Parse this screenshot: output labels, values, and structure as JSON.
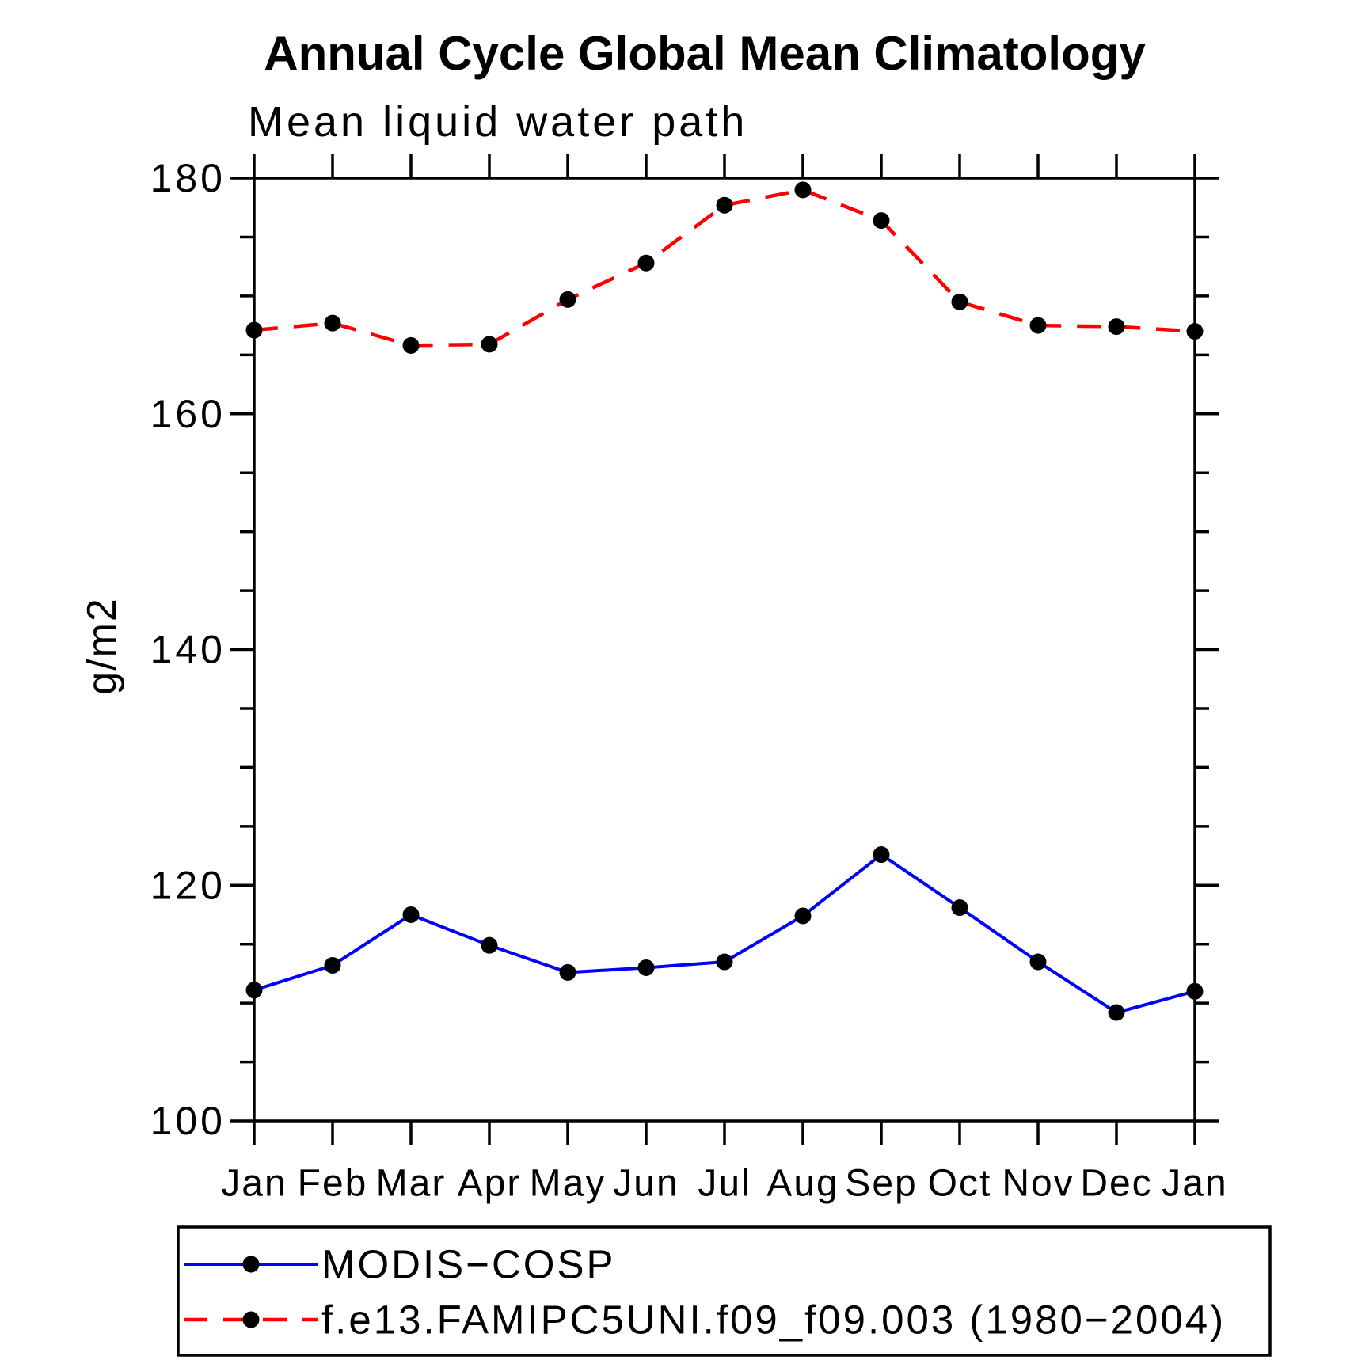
{
  "window_title": "Annual Cycle Global Mean Climatology",
  "chart_data": {
    "type": "line",
    "title": "Annual Cycle Global Mean Climatology",
    "subtitle": "Mean liquid water path",
    "ylabel": "g/m2",
    "xlabel": "",
    "categories": [
      "Jan",
      "Feb",
      "Mar",
      "Apr",
      "May",
      "Jun",
      "Jul",
      "Aug",
      "Sep",
      "Oct",
      "Nov",
      "Dec",
      "Jan"
    ],
    "ylim": [
      100,
      180
    ],
    "y_major_ticks": [
      100,
      120,
      140,
      160,
      180
    ],
    "y_minor_step": 5,
    "grid": false,
    "legend_position": "bottom",
    "frame_color": "#000000",
    "marker_color": "#000000",
    "series": [
      {
        "name": "MODIS−COSP",
        "color": "#0000ff",
        "line_style": "solid",
        "marker": "circle",
        "values": [
          111.1,
          113.2,
          117.5,
          114.9,
          112.6,
          113.0,
          113.5,
          117.4,
          122.6,
          118.1,
          113.5,
          109.2,
          111.0
        ]
      },
      {
        "name": "f.e13.FAMIPC5UNI.f09_f09.003 (1980−2004)",
        "color": "#ff0000",
        "line_style": "dashed",
        "marker": "circle",
        "values": [
          167.1,
          167.7,
          165.8,
          165.9,
          169.7,
          172.8,
          177.7,
          179.0,
          176.4,
          169.5,
          167.5,
          167.4,
          167.0
        ]
      }
    ]
  }
}
